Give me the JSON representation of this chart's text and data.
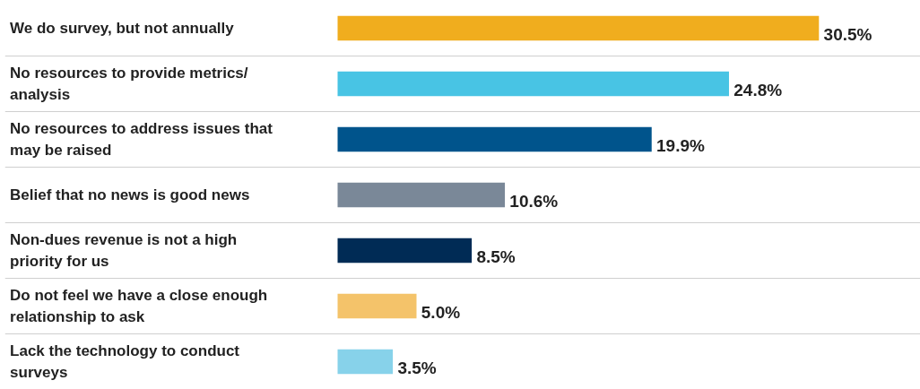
{
  "chart_data": {
    "type": "bar",
    "orientation": "horizontal",
    "categories": [
      "We do survey, but not annually",
      "No resources to provide metrics/ analysis",
      "No resources to address issues that may be raised",
      "Belief that no news is good news",
      "Non-dues revenue is not a high priority for us",
      "Do not feel we have a close enough relationship to ask",
      "Lack the technology to conduct surveys"
    ],
    "values": [
      30.5,
      24.8,
      19.9,
      10.6,
      8.5,
      5.0,
      3.5
    ],
    "colors": [
      "#f0ad1e",
      "#48c4e4",
      "#00548c",
      "#7a8898",
      "#002b55",
      "#f4c36a",
      "#87d2ea"
    ],
    "value_labels": [
      "30.5%",
      "24.8%",
      "19.9%",
      "10.6%",
      "8.5%",
      "5.0%",
      "3.5%"
    ],
    "grid": "y"
  }
}
